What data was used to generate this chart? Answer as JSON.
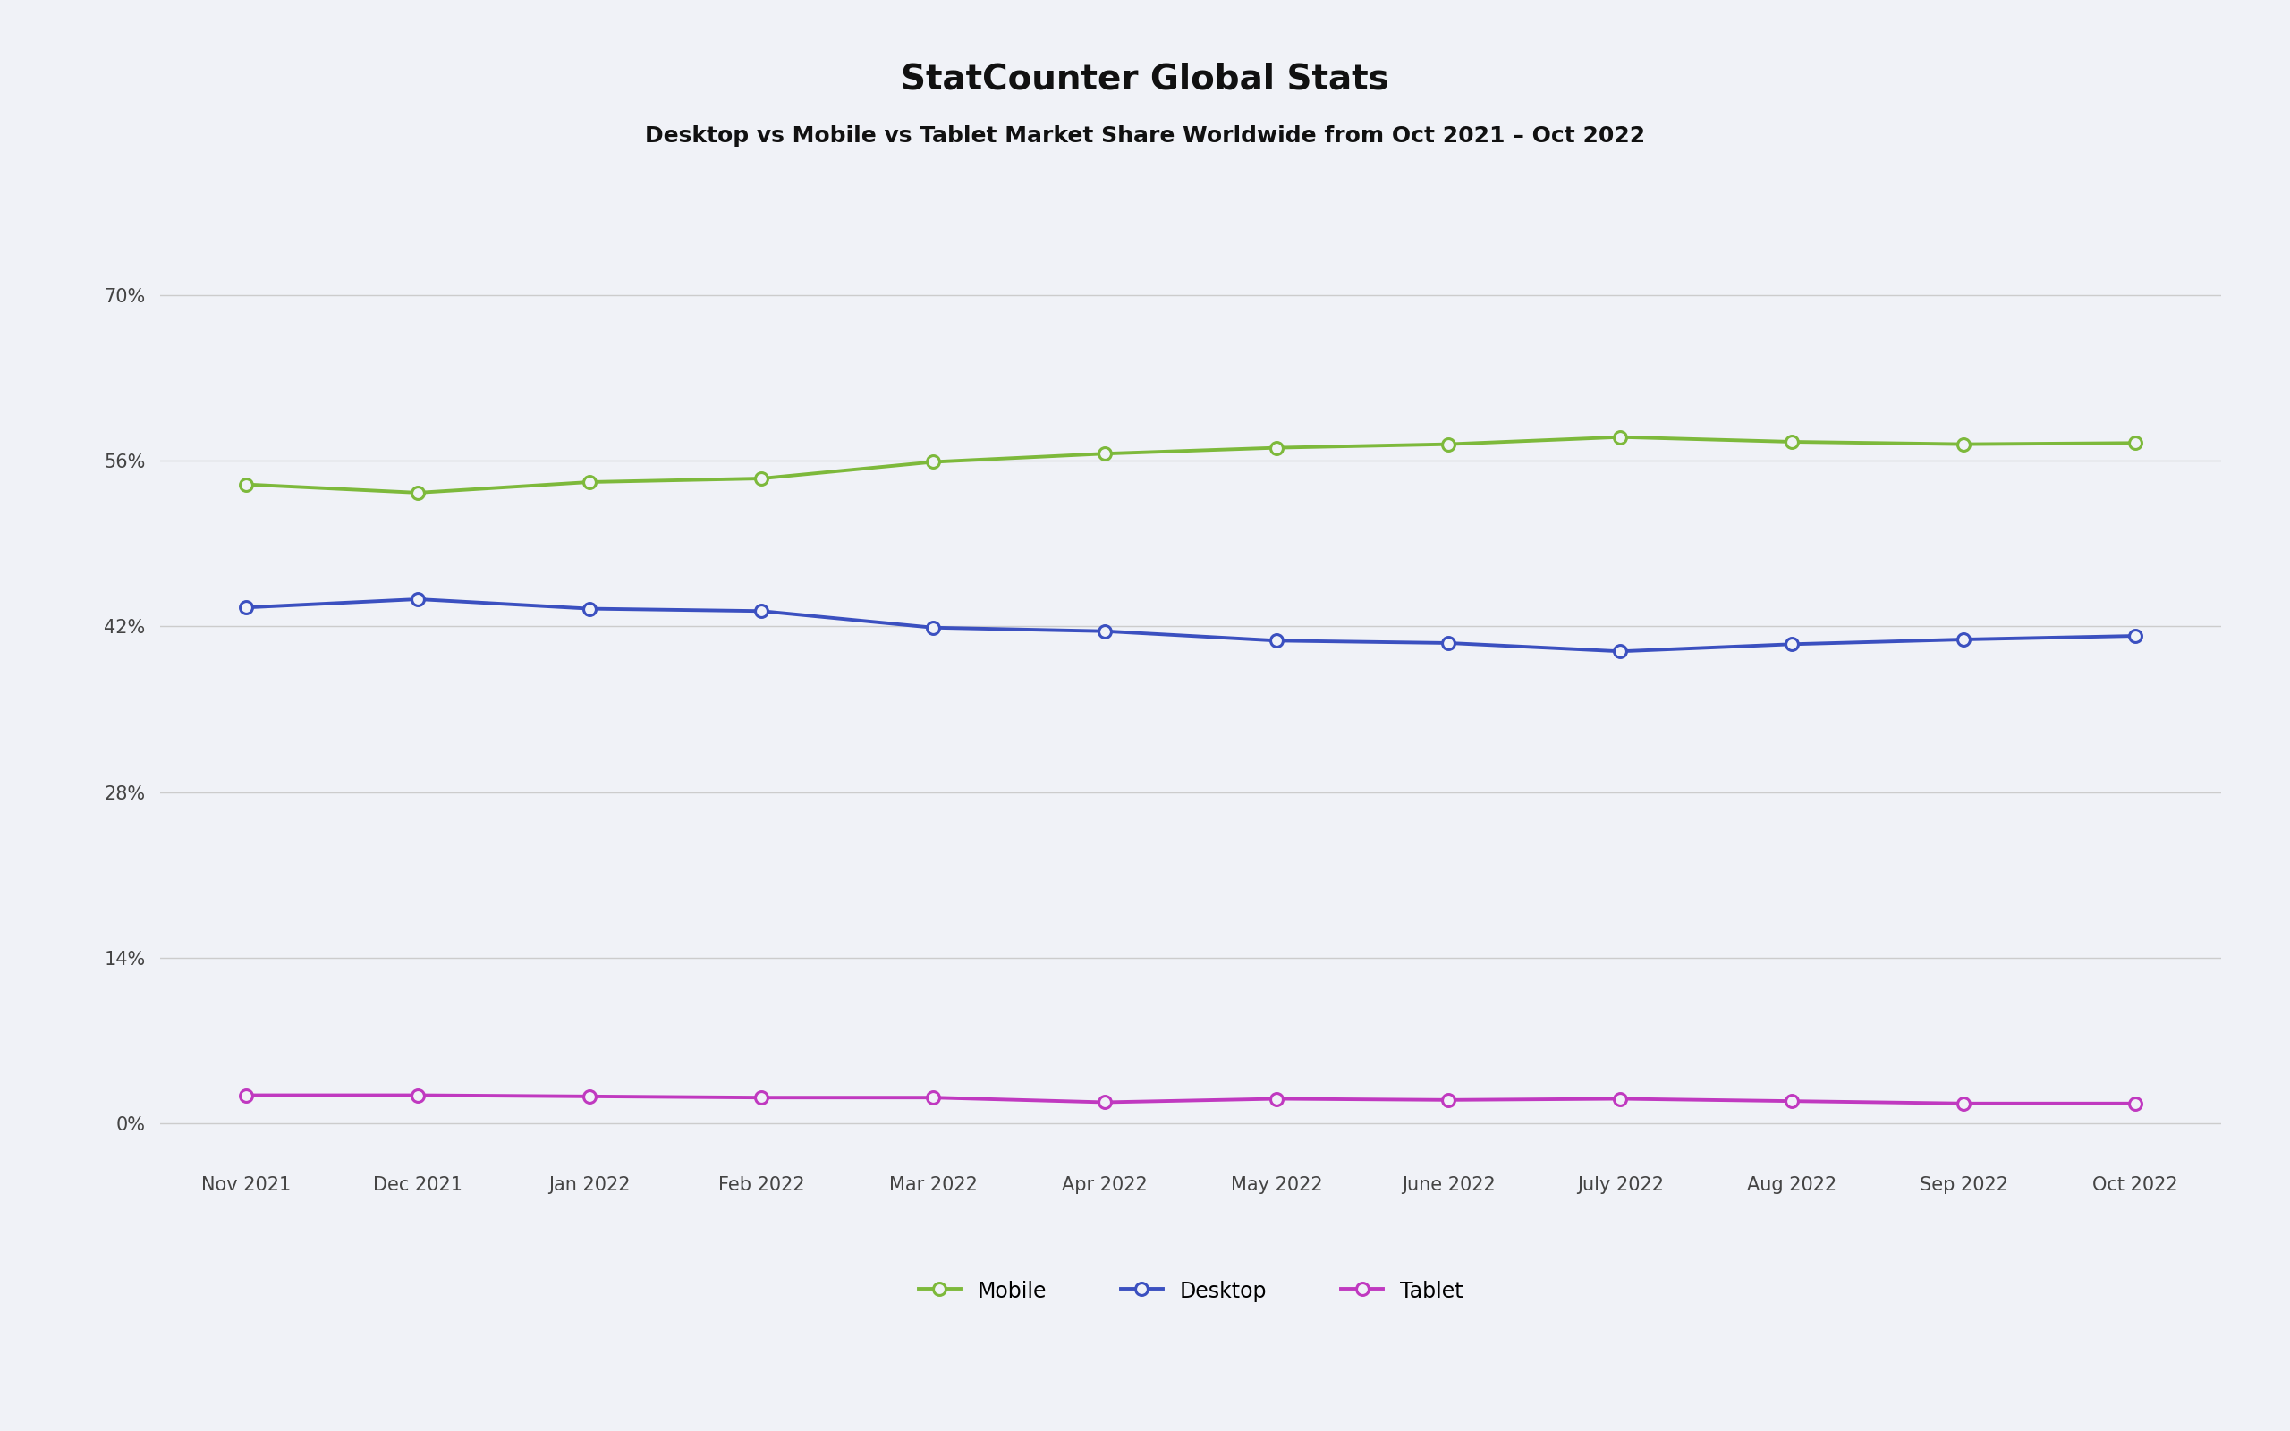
{
  "title": "StatCounter Global Stats",
  "subtitle": "Desktop vs Mobile vs Tablet Market Share Worldwide from Oct 2021 – Oct 2022",
  "x_labels": [
    "Nov 2021",
    "Dec 2021",
    "Jan 2022",
    "Feb 2022",
    "Mar 2022",
    "Apr 2022",
    "May 2022",
    "June 2022",
    "July 2022",
    "Aug 2022",
    "Sep 2022",
    "Oct 2022"
  ],
  "mobile": [
    54.0,
    53.3,
    54.2,
    54.5,
    55.9,
    56.6,
    57.1,
    57.4,
    58.0,
    57.6,
    57.4,
    57.5
  ],
  "desktop": [
    43.6,
    44.3,
    43.5,
    43.3,
    41.9,
    41.6,
    40.8,
    40.6,
    39.9,
    40.5,
    40.9,
    41.2
  ],
  "tablet": [
    2.4,
    2.4,
    2.3,
    2.2,
    2.2,
    1.8,
    2.1,
    2.0,
    2.1,
    1.9,
    1.7,
    1.7
  ],
  "mobile_color": "#7db93b",
  "desktop_color": "#3b50c0",
  "tablet_color": "#c039c0",
  "fig_bg_color": "#f0f2f7",
  "grid_color": "#cccccc",
  "yticks": [
    0,
    14,
    28,
    42,
    56,
    70
  ],
  "ylim": [
    -3,
    78
  ],
  "title_fontsize": 28,
  "subtitle_fontsize": 18,
  "tick_fontsize": 15,
  "legend_fontsize": 17,
  "line_width": 2.8,
  "marker_size": 10,
  "marker_edge_width": 2.2
}
